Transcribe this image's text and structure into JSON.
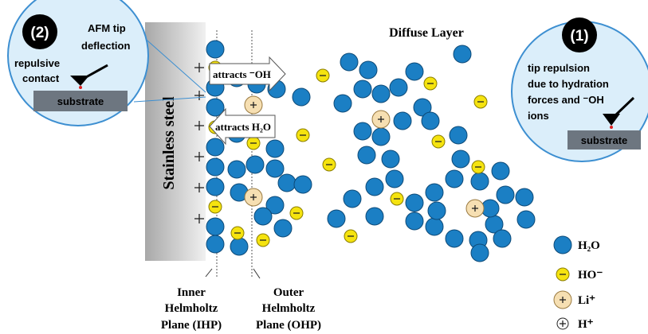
{
  "left_bubble": {
    "number": "(2)",
    "caption_lines": [
      "AFM tip",
      "deflection"
    ],
    "contact_lines": [
      "repulsive",
      "contact"
    ],
    "substrate": "substrate"
  },
  "right_bubble": {
    "number": "(1)",
    "caption_lines": [
      "tip repulsion",
      "due to hydration",
      "forces and ⁻OH",
      "ions"
    ],
    "substrate": "substrate"
  },
  "electrode": "Stainless steel",
  "arrows": [
    "attracts ⁻OH",
    "attracts H₂O"
  ],
  "diffuse_layer": "Diffuse Layer",
  "planes": [
    {
      "lines": [
        "Inner",
        "Helmholtz",
        "Plane (IHP)"
      ]
    },
    {
      "lines": [
        "Outer",
        "Helmholtz",
        "Plane (OHP)"
      ]
    }
  ],
  "legend": [
    "H₂O",
    "HO⁻",
    "Li⁺",
    "H⁺"
  ]
}
